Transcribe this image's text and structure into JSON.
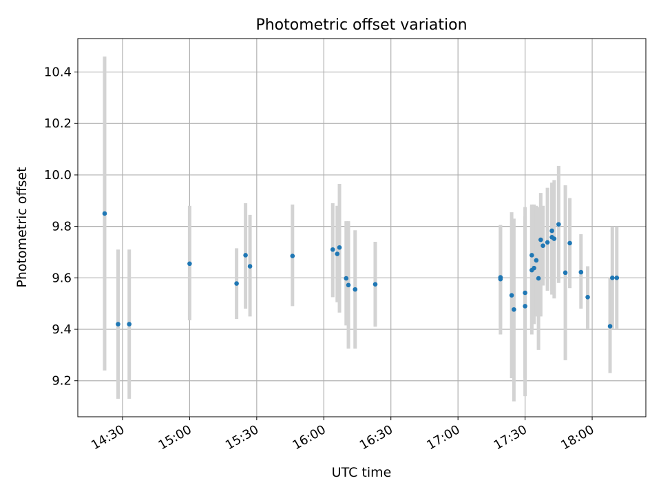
{
  "chart_data": {
    "type": "scatter",
    "title": "Photometric offset variation",
    "xlabel": "UTC time",
    "ylabel": "Photometric offset",
    "x_format": "HH:MM",
    "xlim": [
      "14:10",
      "18:24"
    ],
    "ylim": [
      9.06,
      10.53
    ],
    "x_ticks": [
      "14:30",
      "15:00",
      "15:30",
      "16:00",
      "16:30",
      "17:00",
      "17:30",
      "18:00"
    ],
    "y_ticks": [
      9.2,
      9.4,
      9.6,
      9.8,
      10.0,
      10.2,
      10.4
    ],
    "y_tick_labels": [
      "9.2",
      "9.4",
      "9.6",
      "9.8",
      "10.0",
      "10.2",
      "10.4"
    ],
    "grid": true,
    "legend": "none",
    "colors": {
      "point": "#1f77b4",
      "errorbar": "#d3d3d3",
      "grid": "#b0b0b0"
    },
    "series": [
      {
        "x": [
          "14:22",
          "14:28",
          "14:33",
          "15:00",
          "15:21",
          "15:25",
          "15:27",
          "15:46",
          "16:04",
          "16:06",
          "16:07",
          "16:10",
          "16:11",
          "16:14",
          "16:23",
          "17:19",
          "17:19",
          "17:24",
          "17:25",
          "17:30",
          "17:30",
          "17:33",
          "17:33",
          "17:34",
          "17:35",
          "17:36",
          "17:37",
          "17:38",
          "17:40",
          "17:42",
          "17:42",
          "17:43",
          "17:45",
          "17:48",
          "17:50",
          "17:55",
          "17:58",
          "18:08",
          "18:09",
          "18:11"
        ],
        "y": [
          9.85,
          9.42,
          9.42,
          9.655,
          9.578,
          9.688,
          9.645,
          9.685,
          9.71,
          9.693,
          9.718,
          9.598,
          9.572,
          9.555,
          9.575,
          9.595,
          9.602,
          9.532,
          9.477,
          9.49,
          9.542,
          9.688,
          9.63,
          9.638,
          9.668,
          9.598,
          9.748,
          9.725,
          9.738,
          9.758,
          9.783,
          9.752,
          9.808,
          9.62,
          9.735,
          9.622,
          9.525,
          9.412,
          9.6,
          9.6
        ],
        "y_err_lower": [
          9.24,
          9.13,
          9.13,
          9.435,
          9.44,
          9.48,
          9.45,
          9.49,
          9.525,
          9.505,
          9.465,
          9.415,
          9.325,
          9.325,
          9.41,
          9.38,
          9.41,
          9.21,
          9.12,
          9.14,
          9.21,
          9.4,
          9.38,
          9.42,
          9.45,
          9.32,
          9.45,
          9.57,
          9.55,
          9.535,
          9.55,
          9.52,
          9.58,
          9.28,
          9.56,
          9.48,
          9.4,
          9.23,
          9.4,
          9.4
        ],
        "y_err_upper": [
          10.46,
          9.71,
          9.71,
          9.88,
          9.715,
          9.89,
          9.845,
          9.885,
          9.89,
          9.88,
          9.965,
          9.82,
          9.82,
          9.785,
          9.74,
          9.805,
          9.805,
          9.855,
          9.83,
          9.84,
          9.875,
          9.885,
          9.88,
          9.885,
          9.88,
          9.875,
          9.93,
          9.88,
          9.95,
          9.97,
          9.97,
          9.98,
          10.035,
          9.96,
          9.91,
          9.77,
          9.645,
          9.6,
          9.8,
          9.8
        ]
      }
    ]
  }
}
